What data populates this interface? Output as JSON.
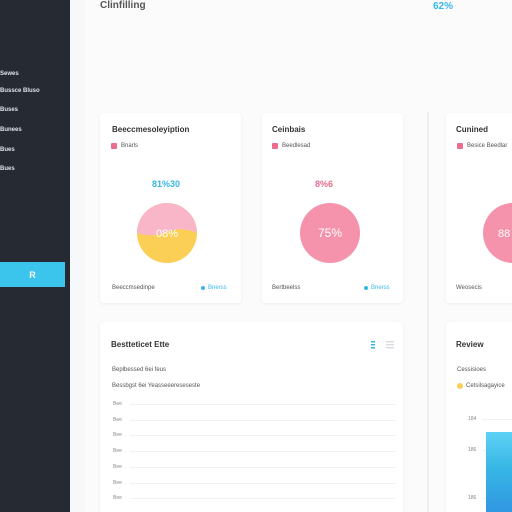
{
  "header": {
    "title": "Clinfilling",
    "stat": "62%"
  },
  "sidebar": {
    "items": [
      "Sewes",
      "Bussce Bluso",
      "Buses",
      "Bunees",
      "Bues",
      "Bues"
    ],
    "active_label": "R"
  },
  "cards": [
    {
      "title": "Beeccmesoleyiption",
      "legend": "Bnarls",
      "value": "81%30",
      "pie_label": "08%",
      "footer": "Beeccmsedinpe",
      "footer_link": "Bnerss",
      "colors": {
        "top": "#f9b6c9",
        "bottom": "#fbcf55",
        "value": "#37b7e6",
        "legend": "#ec6d8d"
      }
    },
    {
      "title": "Ceinbais",
      "legend": "Beedlesad",
      "value": "8%6",
      "pie_label": "75%",
      "footer": "Bertbeelss",
      "footer_link": "Bnerss",
      "colors": {
        "fill": "#f593ac",
        "value": "#e76d8d",
        "legend": "#ec6d8d"
      }
    },
    {
      "title": "Cunined",
      "legend": "Besice Beedlar",
      "pie_label": "88",
      "footer": "Weosecis",
      "colors": {
        "fill": "#f593ac",
        "legend": "#ec6d8d"
      }
    }
  ],
  "table_card": {
    "title": "Bestteticet Ette",
    "subtitle": "Beplbessed 6ei feus",
    "header": "Bessbgst 6ei Yeasseeereseseste",
    "rows": [
      "Bee",
      "Bee",
      "Bee",
      "Bee",
      "Bee",
      "Bee",
      "Bee"
    ]
  },
  "review_card": {
    "title": "Review",
    "subtitle": "Cessisioes",
    "legend": "Cetsilsagayice",
    "ticks": [
      "184",
      "186",
      "186"
    ],
    "colors": {
      "bar": "#37b7e6",
      "legend": "#fbcf55"
    }
  }
}
